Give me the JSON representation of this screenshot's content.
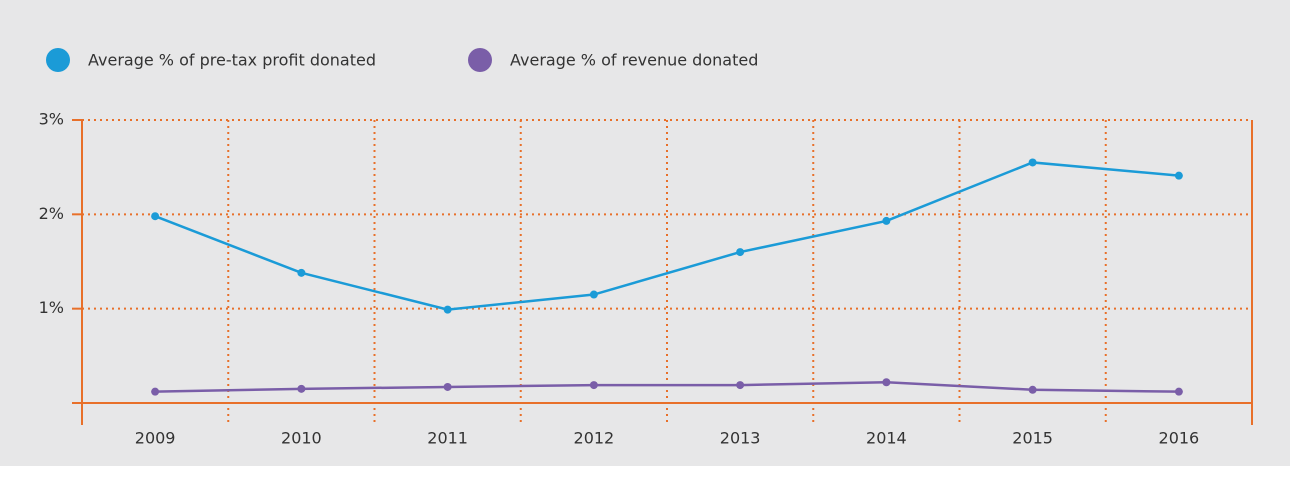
{
  "chart_data": {
    "type": "line",
    "categories": [
      "2009",
      "2010",
      "2011",
      "2012",
      "2013",
      "2014",
      "2015",
      "2016"
    ],
    "series": [
      {
        "name": "Average % of pre-tax profit donated",
        "color": "#1b9bd7",
        "values": [
          1.98,
          1.38,
          0.99,
          1.15,
          1.6,
          1.93,
          2.55,
          2.41
        ]
      },
      {
        "name": "Average % of revenue donated",
        "color": "#7a5ea8",
        "values": [
          0.12,
          0.15,
          0.17,
          0.19,
          0.19,
          0.22,
          0.14,
          0.12
        ]
      }
    ],
    "ylim": [
      0,
      3
    ],
    "yticks": [
      {
        "value": 1,
        "label": "1%"
      },
      {
        "value": 2,
        "label": "2%"
      },
      {
        "value": 3,
        "label": "3%"
      }
    ],
    "grid": true,
    "axis_color": "#e8702a"
  }
}
